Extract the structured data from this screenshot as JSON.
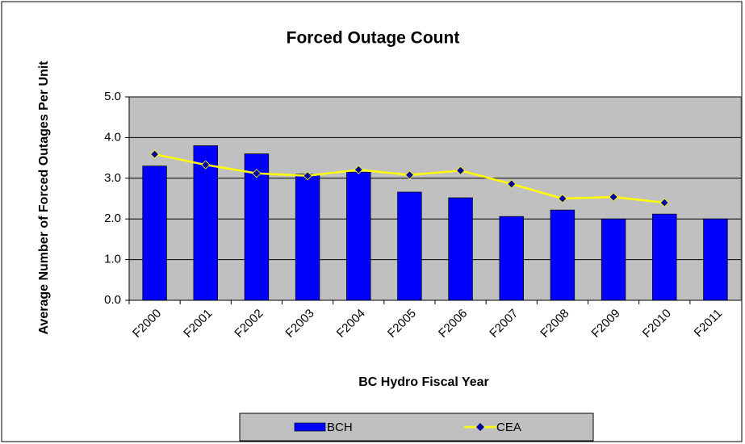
{
  "chart_data": {
    "type": "bar_line",
    "title": "Forced Outage Count",
    "x_label": "BC Hydro Fiscal Year",
    "y_label": "Average Number of Forced Outages Per Unit",
    "categories": [
      "F2000",
      "F2001",
      "F2002",
      "F2003",
      "F2004",
      "F2005",
      "F2006",
      "F2007",
      "F2008",
      "F2009",
      "F2010",
      "F2011"
    ],
    "series": [
      {
        "name": "BCH",
        "type": "bar",
        "color": "#0000ff",
        "values": [
          3.3,
          3.8,
          3.6,
          3.1,
          3.15,
          2.66,
          2.52,
          2.06,
          2.22,
          2.0,
          2.12,
          2.0
        ]
      },
      {
        "name": "CEA",
        "type": "line",
        "color": "#ffff00",
        "marker_color": "#0000a0",
        "values": [
          3.59,
          3.33,
          3.12,
          3.06,
          3.21,
          3.08,
          3.19,
          2.86,
          2.5,
          2.54,
          2.4,
          null
        ]
      }
    ],
    "ylim": [
      0,
      5
    ],
    "yticks": [
      {
        "value": 0,
        "label": "0.0"
      },
      {
        "value": 1,
        "label": "1.0"
      },
      {
        "value": 2,
        "label": "2.0"
      },
      {
        "value": 3,
        "label": "3.0"
      },
      {
        "value": 4,
        "label": "4.0"
      },
      {
        "value": 5,
        "label": "5.0"
      }
    ],
    "grid": true,
    "legend": "bottom"
  }
}
